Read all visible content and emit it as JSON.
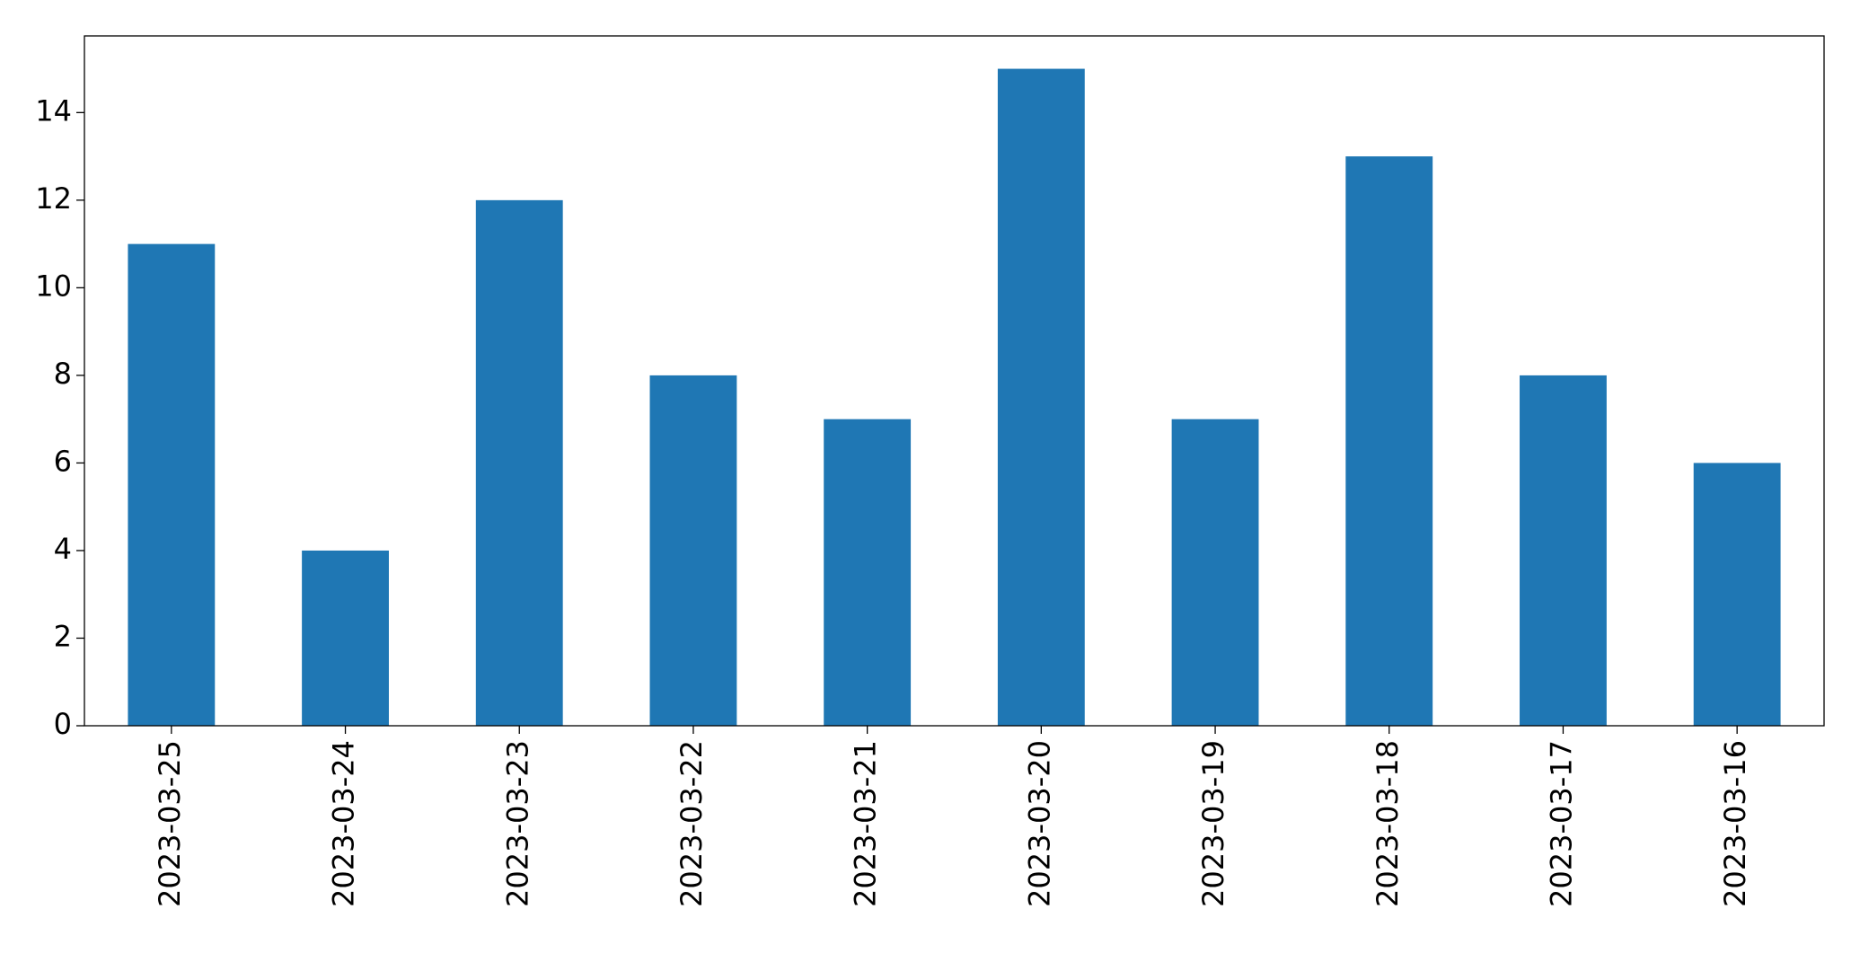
{
  "chart_data": {
    "type": "bar",
    "categories": [
      "2023-03-25",
      "2023-03-24",
      "2023-03-23",
      "2023-03-22",
      "2023-03-21",
      "2023-03-20",
      "2023-03-19",
      "2023-03-18",
      "2023-03-17",
      "2023-03-16"
    ],
    "values": [
      11,
      4,
      12,
      8,
      7,
      15,
      7,
      13,
      8,
      6
    ],
    "color": "#1f77b4",
    "ylim": [
      0,
      15.75
    ],
    "yticks": [
      0,
      2,
      4,
      6,
      8,
      10,
      12,
      14
    ],
    "grid": false
  }
}
